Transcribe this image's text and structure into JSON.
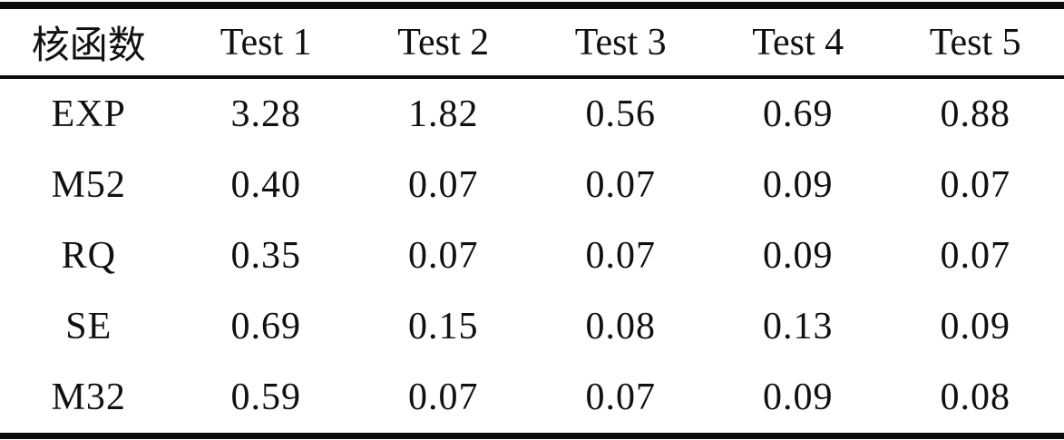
{
  "table": {
    "columns": [
      "核函数",
      "Test 1",
      "Test 2",
      "Test 3",
      "Test 4",
      "Test 5"
    ],
    "rows": [
      {
        "kernel": "EXP",
        "values": [
          "3.28",
          "1.82",
          "0.56",
          "0.69",
          "0.88"
        ]
      },
      {
        "kernel": "M52",
        "values": [
          "0.40",
          "0.07",
          "0.07",
          "0.09",
          "0.07"
        ]
      },
      {
        "kernel": "RQ",
        "values": [
          "0.35",
          "0.07",
          "0.07",
          "0.09",
          "0.07"
        ]
      },
      {
        "kernel": "SE",
        "values": [
          "0.69",
          "0.15",
          "0.08",
          "0.13",
          "0.09"
        ]
      },
      {
        "kernel": "M32",
        "values": [
          "0.59",
          "0.07",
          "0.07",
          "0.09",
          "0.08"
        ]
      }
    ]
  },
  "colors": {
    "rule": "#0d0d0d",
    "text": "#101010",
    "background": "#ffffff"
  }
}
